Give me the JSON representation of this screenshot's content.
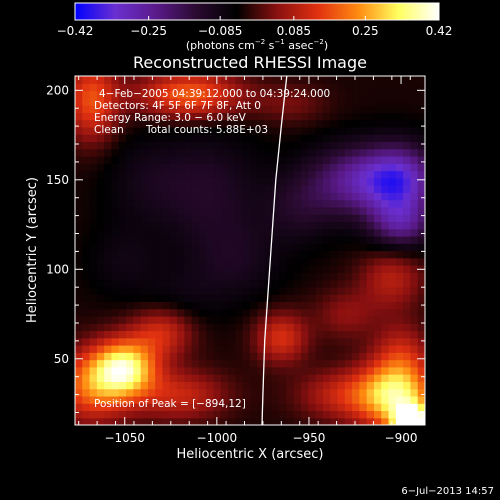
{
  "chart_data": {
    "type": "heatmap",
    "title": "Reconstructed RHESSI Image",
    "xlabel": "Heliocentric X (arcsec)",
    "ylabel": "Heliocentric Y (arcsec)",
    "xlim": [
      -1077,
      -887
    ],
    "ylim": [
      13,
      208
    ],
    "x_ticks": [
      -1050,
      -1000,
      -950,
      -900
    ],
    "x_tick_labels": [
      "−1050",
      "−1000",
      "−950",
      "−900"
    ],
    "y_ticks": [
      50,
      100,
      150,
      200
    ],
    "y_tick_labels": [
      "50",
      "100",
      "150",
      "200"
    ],
    "colorbar": {
      "range": [
        -0.42,
        0.42
      ],
      "ticks": [
        -0.42,
        -0.25,
        -0.085,
        0.085,
        0.25,
        0.42
      ],
      "tick_labels": [
        "−0.42",
        "−0.25",
        "−0.085",
        "0.085",
        "0.25",
        "0.42"
      ],
      "unit_main": "(photons cm",
      "unit_exp1": "−2",
      "unit_mid": " s",
      "unit_exp2": "−1",
      "unit_end": " asec",
      "unit_exp3": "−2",
      "unit_close": ")",
      "colors": [
        "#0000ff",
        "#6a2fd0",
        "#5a1a8a",
        "#2a0a30",
        "#000000",
        "#8a1010",
        "#e03010",
        "#ff8a10",
        "#ffff60",
        "#ffffff"
      ]
    },
    "annotations": {
      "time": "4−Feb−2005 04:39:12.000 to 04:39:24.000",
      "detectors": "Detectors: 4F 5F 6F 7F 8F, Att 0",
      "energy": "Energy Range: 3.0 − 6.0 keV",
      "method": "Clean",
      "counts": "Total counts: 5.88E+03",
      "peak": "Position of Peak = [−894,12]"
    },
    "peak": {
      "x": -894,
      "y": 12
    },
    "limb_curve": [
      [
        -962,
        208
      ],
      [
        -965,
        180
      ],
      [
        -968,
        150
      ],
      [
        -970,
        120
      ],
      [
        -972,
        90
      ],
      [
        -974,
        60
      ],
      [
        -975,
        30
      ],
      [
        -975.5,
        13
      ]
    ],
    "blobs": [
      {
        "x": -1050,
        "y": 45,
        "amp": 0.36,
        "sx": 12,
        "sy": 11
      },
      {
        "x": -1068,
        "y": 35,
        "amp": 0.22,
        "sx": 14,
        "sy": 14
      },
      {
        "x": -1030,
        "y": 65,
        "amp": 0.15,
        "sx": 12,
        "sy": 10
      },
      {
        "x": -1020,
        "y": 30,
        "amp": 0.14,
        "sx": 18,
        "sy": 10
      },
      {
        "x": -1068,
        "y": 195,
        "amp": 0.2,
        "sx": 10,
        "sy": 16
      },
      {
        "x": -1015,
        "y": 198,
        "amp": 0.22,
        "sx": 20,
        "sy": 9
      },
      {
        "x": -960,
        "y": 193,
        "amp": 0.06,
        "sx": 14,
        "sy": 8
      },
      {
        "x": -965,
        "y": 62,
        "amp": 0.16,
        "sx": 10,
        "sy": 10
      },
      {
        "x": -930,
        "y": 30,
        "amp": 0.14,
        "sx": 18,
        "sy": 10
      },
      {
        "x": -902,
        "y": 30,
        "amp": 0.34,
        "sx": 14,
        "sy": 14
      },
      {
        "x": -894,
        "y": 14,
        "amp": 0.45,
        "sx": 7,
        "sy": 7
      },
      {
        "x": -905,
        "y": 95,
        "amp": 0.12,
        "sx": 12,
        "sy": 12
      },
      {
        "x": -930,
        "y": 75,
        "amp": 0.08,
        "sx": 12,
        "sy": 10
      },
      {
        "x": -900,
        "y": 55,
        "amp": 0.1,
        "sx": 10,
        "sy": 12
      },
      {
        "x": -1040,
        "y": 150,
        "amp": -0.05,
        "sx": 16,
        "sy": 18
      },
      {
        "x": -1005,
        "y": 145,
        "amp": -0.09,
        "sx": 20,
        "sy": 22
      },
      {
        "x": -990,
        "y": 105,
        "amp": -0.07,
        "sx": 18,
        "sy": 16
      },
      {
        "x": -1050,
        "y": 105,
        "amp": -0.05,
        "sx": 14,
        "sy": 14
      },
      {
        "x": -925,
        "y": 150,
        "amp": -0.2,
        "sx": 18,
        "sy": 14
      },
      {
        "x": -900,
        "y": 150,
        "amp": -0.26,
        "sx": 14,
        "sy": 14
      },
      {
        "x": -900,
        "y": 125,
        "amp": -0.18,
        "sx": 12,
        "sy": 10
      },
      {
        "x": -955,
        "y": 135,
        "amp": -0.08,
        "sx": 14,
        "sy": 14
      },
      {
        "x": -1020,
        "y": 85,
        "amp": -0.04,
        "sx": 16,
        "sy": 12
      }
    ]
  },
  "footer": {
    "timestamp": "6−Jul−2013 14:57"
  }
}
